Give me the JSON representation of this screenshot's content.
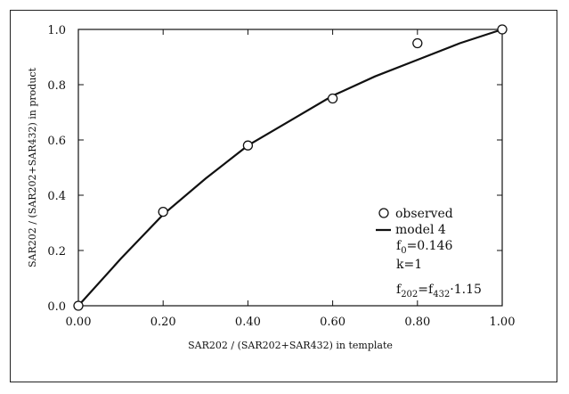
{
  "chart_data": {
    "type": "scatter",
    "xlabel": "SAR202 / (SAR202+SAR432) in template",
    "ylabel": "SAR202 / (SAR202+SAR432) in product",
    "xlim": [
      0,
      1
    ],
    "ylim": [
      0,
      1
    ],
    "x_ticks": [
      "0.00",
      "0.20",
      "0.40",
      "0.60",
      "0.80",
      "1.00"
    ],
    "y_ticks": [
      "0.0",
      "0.2",
      "0.4",
      "0.6",
      "0.8",
      "1.0"
    ],
    "grid": false,
    "legend_position": "bottom-right",
    "series": [
      {
        "name": "observed",
        "kind": "markers",
        "x": [
          0.0,
          0.2,
          0.4,
          0.6,
          0.8,
          1.0
        ],
        "y": [
          0.0,
          0.34,
          0.58,
          0.75,
          0.95,
          1.0
        ]
      },
      {
        "name": "model 4",
        "kind": "line",
        "x": [
          0.0,
          0.1,
          0.2,
          0.3,
          0.4,
          0.5,
          0.6,
          0.7,
          0.8,
          0.9,
          1.0
        ],
        "y": [
          0.0,
          0.17,
          0.33,
          0.46,
          0.58,
          0.67,
          0.76,
          0.83,
          0.89,
          0.95,
          1.0
        ]
      }
    ],
    "legend_notes": {
      "f0_main": "f",
      "f0_sub": "0",
      "f0_value": "=0.146",
      "k": "k=1",
      "f202_main": "f",
      "f202_sub": "202",
      "f202_eq": "=f",
      "f432_sub": "432",
      "f202_factor": "·1.15"
    }
  }
}
